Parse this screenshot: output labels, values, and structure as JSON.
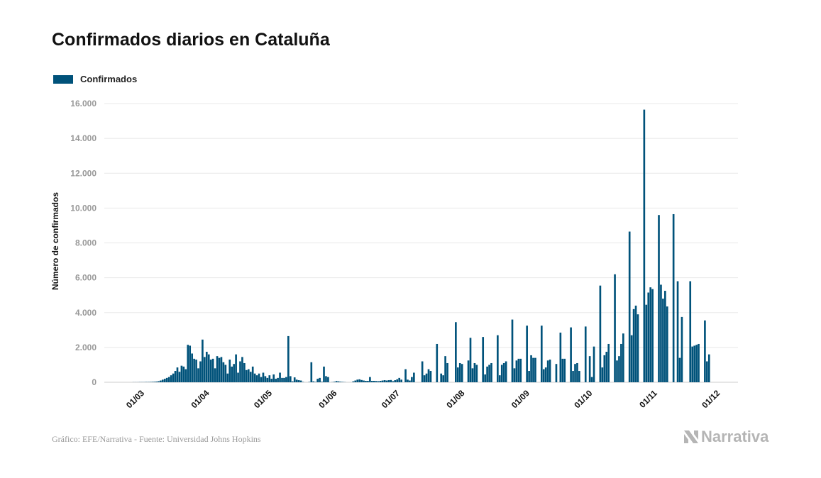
{
  "title": "Confirmados diarios en Cataluña",
  "footer": "Gráfico: EFE/Narrativa - Fuente: Universidad Johns Hopkins",
  "logo_text": "Narrativa",
  "colors": {
    "bar": "#00527a",
    "grid": "#e8e8e8",
    "tick_text": "#999999"
  },
  "chart_data": {
    "type": "bar",
    "title": "Confirmados diarios en Cataluña",
    "legend": {
      "position": "top-left",
      "entries": [
        "Confirmados"
      ]
    },
    "xlabel": "",
    "ylabel": "Número de confirmados",
    "ylim": [
      0,
      16000
    ],
    "grid": true,
    "y_ticks": [
      "0",
      "2.000",
      "4.000",
      "6.000",
      "8.000",
      "10.000",
      "12.000",
      "14.000",
      "16.000"
    ],
    "x_ticks": [
      "01/03",
      "01/04",
      "01/05",
      "01/06",
      "01/07",
      "01/08",
      "01/09",
      "01/10",
      "01/11",
      "01/12"
    ],
    "series": [
      {
        "name": "Confirmados",
        "daily_by_month": [
          {
            "month": "02",
            "first_day": 26,
            "values": [
              5,
              5,
              5,
              10
            ]
          },
          {
            "month": "03",
            "first_day": 1,
            "values": [
              10,
              10,
              15,
              15,
              20,
              25,
              30,
              40,
              60,
              100,
              150,
              200,
              250,
              300,
              400,
              500,
              650,
              850,
              600,
              950,
              900,
              750,
              2150,
              2100,
              1650,
              1350,
              1300,
              800,
              1200,
              2450,
              1450
            ]
          },
          {
            "month": "04",
            "first_day": 1,
            "values": [
              1750,
              1600,
              1300,
              1350,
              800,
              1500,
              1400,
              1450,
              1150,
              1000,
              500,
              1300,
              900,
              1050,
              1600,
              550,
              1200,
              1450,
              1100,
              700,
              750,
              600,
              900,
              500,
              400,
              500,
              300,
              550,
              350,
              250
            ]
          },
          {
            "month": "05",
            "first_day": 1,
            "values": [
              400,
              200,
              450,
              200,
              250,
              550,
              250,
              250,
              300,
              2650,
              350,
              50,
              280,
              150,
              120,
              100,
              20,
              0,
              0,
              20,
              1150,
              50,
              20,
              200,
              250,
              30,
              900,
              350,
              300,
              0,
              10
            ]
          },
          {
            "month": "06",
            "first_day": 1,
            "values": [
              30,
              70,
              50,
              30,
              20,
              10,
              0,
              0,
              0,
              50,
              100,
              150,
              170,
              130,
              100,
              80,
              80,
              300,
              80,
              80,
              70,
              60,
              80,
              100,
              120,
              100,
              120,
              130,
              60,
              120
            ]
          },
          {
            "month": "07",
            "first_day": 1,
            "values": [
              170,
              250,
              150,
              0,
              750,
              150,
              100,
              300,
              550,
              0,
              0,
              0,
              1200,
              400,
              500,
              750,
              650,
              0,
              0,
              2200,
              0,
              500,
              400,
              1500,
              1100,
              0,
              0,
              0,
              3450,
              850,
              1100
            ]
          },
          {
            "month": "08",
            "first_day": 1,
            "values": [
              1050,
              0,
              0,
              1250,
              2550,
              800,
              1100,
              1000,
              0,
              0,
              2600,
              450,
              900,
              1000,
              1100,
              0,
              0,
              2700,
              400,
              1000,
              1100,
              1200,
              0,
              0,
              3600,
              800,
              1250,
              1350,
              1350,
              0,
              0
            ]
          },
          {
            "month": "09",
            "first_day": 1,
            "values": [
              3250,
              650,
              1550,
              1400,
              1400,
              0,
              0,
              3250,
              750,
              850,
              1250,
              1300,
              0,
              0,
              1050,
              0,
              2850,
              1350,
              1350,
              0,
              0,
              3150,
              650,
              1050,
              1100,
              650,
              0,
              0,
              3200,
              0
            ]
          },
          {
            "month": "10",
            "first_day": 1,
            "values": [
              1500,
              300,
              2050,
              0,
              0,
              5550,
              850,
              1550,
              1750,
              2200,
              0,
              0,
              6200,
              1250,
              1500,
              2200,
              2800,
              0,
              0,
              8650,
              2700,
              4200,
              4400,
              3900,
              0,
              0,
              15650,
              4450,
              5150,
              5450,
              5350
            ]
          },
          {
            "month": "11",
            "first_day": 1,
            "values": [
              0,
              0,
              9600,
              5600,
              4800,
              5250,
              4350,
              0,
              0,
              9650,
              0,
              5800,
              1400,
              3750,
              0,
              0,
              0,
              5800,
              2050,
              2100,
              2150,
              2200,
              0,
              0,
              3550,
              1200,
              1600
            ]
          }
        ]
      }
    ]
  }
}
